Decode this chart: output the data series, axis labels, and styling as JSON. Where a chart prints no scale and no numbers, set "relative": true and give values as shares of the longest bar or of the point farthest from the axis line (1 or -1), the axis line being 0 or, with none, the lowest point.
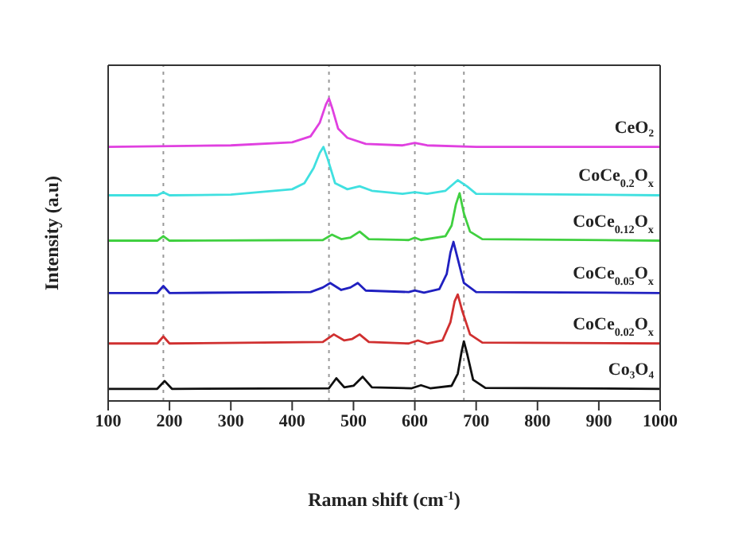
{
  "chart_data": {
    "type": "line",
    "relative": true,
    "xlabel": "Raman shift (cm$^{-1}$)",
    "ylabel": "Intensity (a.u)",
    "xlim": [
      100,
      1000
    ],
    "xticks": [
      100,
      200,
      300,
      400,
      500,
      600,
      700,
      800,
      900,
      1000
    ],
    "legend": false,
    "marker": "none",
    "line_style": "solid",
    "ref_lines": [
      {
        "axis": "x",
        "value": 190,
        "color": "#999999",
        "line_style": "dotted"
      },
      {
        "axis": "x",
        "value": 460,
        "color": "#999999",
        "line_style": "dotted"
      },
      {
        "axis": "x",
        "value": 600,
        "color": "#999999",
        "line_style": "dotted"
      },
      {
        "axis": "x",
        "value": 680,
        "color": "#999999",
        "line_style": "dotted"
      }
    ],
    "series": [
      {
        "name": "CeO₂",
        "color": "#e040e0",
        "x": [
          100,
          300,
          400,
          430,
          445,
          455,
          460,
          465,
          475,
          490,
          520,
          580,
          600,
          620,
          700,
          1000
        ],
        "values": [
          0.84,
          0.845,
          0.855,
          0.875,
          0.92,
          0.98,
          1.0,
          0.97,
          0.9,
          0.87,
          0.85,
          0.845,
          0.853,
          0.845,
          0.84,
          0.84
        ]
      },
      {
        "name": "CoCe$_{0.2}$O$_{x}$",
        "color": "#40e0e0",
        "x": [
          100,
          180,
          190,
          200,
          300,
          400,
          420,
          435,
          445,
          451,
          458,
          470,
          490,
          510,
          530,
          580,
          600,
          620,
          650,
          670,
          685,
          700,
          1000
        ],
        "values": [
          0.68,
          0.68,
          0.69,
          0.68,
          0.682,
          0.7,
          0.72,
          0.77,
          0.82,
          0.84,
          0.8,
          0.72,
          0.7,
          0.71,
          0.695,
          0.685,
          0.69,
          0.685,
          0.695,
          0.73,
          0.71,
          0.685,
          0.68
        ]
      },
      {
        "name": "CoCe$_{0.12}$O$_{x}$",
        "color": "#40d040",
        "x": [
          100,
          180,
          190,
          200,
          450,
          465,
          480,
          495,
          510,
          525,
          590,
          600,
          610,
          650,
          660,
          667,
          673,
          680,
          690,
          710,
          1000
        ],
        "values": [
          0.53,
          0.53,
          0.545,
          0.53,
          0.532,
          0.55,
          0.535,
          0.54,
          0.56,
          0.535,
          0.532,
          0.54,
          0.532,
          0.545,
          0.58,
          0.65,
          0.687,
          0.62,
          0.56,
          0.535,
          0.53
        ]
      },
      {
        "name": "CoCe$_{0.05}$O$_{x}$",
        "color": "#2020c0",
        "x": [
          100,
          180,
          190,
          200,
          430,
          450,
          462,
          480,
          495,
          507,
          520,
          590,
          600,
          615,
          640,
          652,
          658,
          663,
          670,
          680,
          700,
          1000
        ],
        "values": [
          0.357,
          0.357,
          0.38,
          0.357,
          0.36,
          0.375,
          0.39,
          0.367,
          0.375,
          0.39,
          0.365,
          0.36,
          0.365,
          0.358,
          0.37,
          0.42,
          0.49,
          0.526,
          0.47,
          0.39,
          0.36,
          0.357
        ]
      },
      {
        "name": "CoCe$_{0.02}$O$_{x}$",
        "color": "#d03030",
        "x": [
          100,
          180,
          190,
          200,
          450,
          468,
          485,
          498,
          510,
          525,
          590,
          605,
          620,
          645,
          658,
          665,
          670,
          677,
          690,
          710,
          1000
        ],
        "values": [
          0.19,
          0.19,
          0.213,
          0.19,
          0.195,
          0.22,
          0.2,
          0.205,
          0.22,
          0.195,
          0.19,
          0.2,
          0.19,
          0.2,
          0.26,
          0.33,
          0.352,
          0.3,
          0.22,
          0.193,
          0.19
        ]
      },
      {
        "name": "Co₃O₄",
        "color": "#101010",
        "x": [
          100,
          180,
          192,
          204,
          460,
          472,
          485,
          500,
          515,
          530,
          595,
          610,
          625,
          660,
          670,
          676,
          680,
          686,
          695,
          715,
          1000
        ],
        "values": [
          0.04,
          0.04,
          0.066,
          0.04,
          0.042,
          0.075,
          0.045,
          0.05,
          0.08,
          0.045,
          0.042,
          0.052,
          0.042,
          0.05,
          0.09,
          0.16,
          0.197,
          0.15,
          0.07,
          0.043,
          0.04
        ]
      }
    ]
  }
}
